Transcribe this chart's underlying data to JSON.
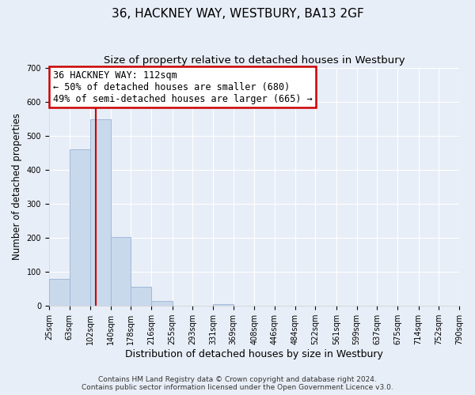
{
  "title": "36, HACKNEY WAY, WESTBURY, BA13 2GF",
  "subtitle": "Size of property relative to detached houses in Westbury",
  "xlabel": "Distribution of detached houses by size in Westbury",
  "ylabel": "Number of detached properties",
  "bin_edges": [
    25,
    63,
    102,
    140,
    178,
    216,
    255,
    293,
    331,
    369,
    408,
    446,
    484,
    522,
    561,
    599,
    637,
    675,
    714,
    752,
    790
  ],
  "bin_heights": [
    80,
    460,
    548,
    202,
    57,
    14,
    0,
    0,
    4,
    0,
    0,
    0,
    0,
    0,
    0,
    0,
    0,
    0,
    0,
    0
  ],
  "bar_color": "#c9d9ec",
  "bar_edgecolor": "#a0b8d8",
  "property_line_x": 112,
  "property_line_color": "#cc0000",
  "ylim": [
    0,
    700
  ],
  "yticks": [
    0,
    100,
    200,
    300,
    400,
    500,
    600,
    700
  ],
  "annotation_line1": "36 HACKNEY WAY: 112sqm",
  "annotation_line2": "← 50% of detached houses are smaller (680)",
  "annotation_line3": "49% of semi-detached houses are larger (665) →",
  "annotation_box_color": "#cc0000",
  "annotation_box_facecolor": "white",
  "footer_line1": "Contains HM Land Registry data © Crown copyright and database right 2024.",
  "footer_line2": "Contains public sector information licensed under the Open Government Licence v3.0.",
  "background_color": "#e8eef7",
  "grid_color": "#ffffff",
  "title_fontsize": 11,
  "subtitle_fontsize": 9.5,
  "tick_label_fontsize": 7,
  "xlabel_fontsize": 9,
  "ylabel_fontsize": 8.5,
  "footer_fontsize": 6.5,
  "annotation_fontsize": 8.5
}
